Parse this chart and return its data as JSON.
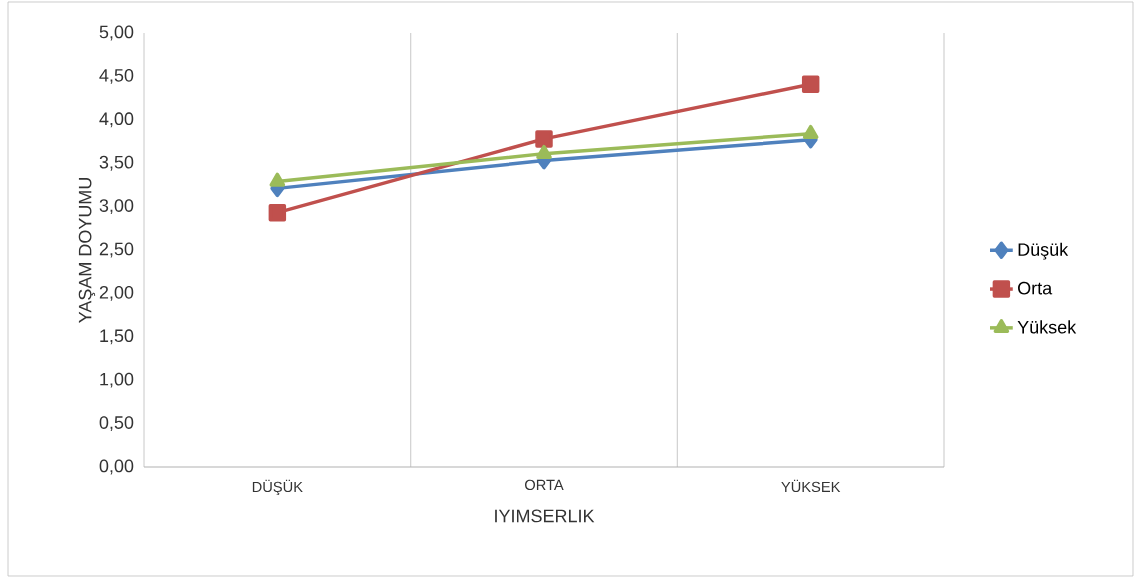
{
  "chart_data": {
    "type": "line",
    "xlabel": "IYIMSERLIK",
    "ylabel": "YAŞAM DOYUMU",
    "categories": [
      "DÜŞÜK",
      "ORTA",
      "YÜKSEK"
    ],
    "series": [
      {
        "name": "Düşük",
        "color": "#4f81bd",
        "marker": "diamond",
        "values": [
          3.21,
          3.53,
          3.77
        ]
      },
      {
        "name": "Orta",
        "color": "#c0504d",
        "marker": "square",
        "values": [
          2.93,
          3.78,
          4.41
        ]
      },
      {
        "name": "Yüksek",
        "color": "#9bbb59",
        "marker": "triangle",
        "values": [
          3.29,
          3.61,
          3.84
        ]
      }
    ],
    "ylim": [
      0,
      5
    ],
    "yticks": [
      {
        "value": 0,
        "label": "0,00"
      },
      {
        "value": 0.5,
        "label": "0,50"
      },
      {
        "value": 1,
        "label": "1,00"
      },
      {
        "value": 1.5,
        "label": "1,50"
      },
      {
        "value": 2,
        "label": "2,00"
      },
      {
        "value": 2.5,
        "label": "2,50"
      },
      {
        "value": 3,
        "label": "3,00"
      },
      {
        "value": 3.5,
        "label": "3,50"
      },
      {
        "value": 4,
        "label": "4,00"
      },
      {
        "value": 4.5,
        "label": "4,50"
      },
      {
        "value": 5,
        "label": "5,00"
      }
    ],
    "grid": "x",
    "legend": "right",
    "line_style": "solid"
  }
}
